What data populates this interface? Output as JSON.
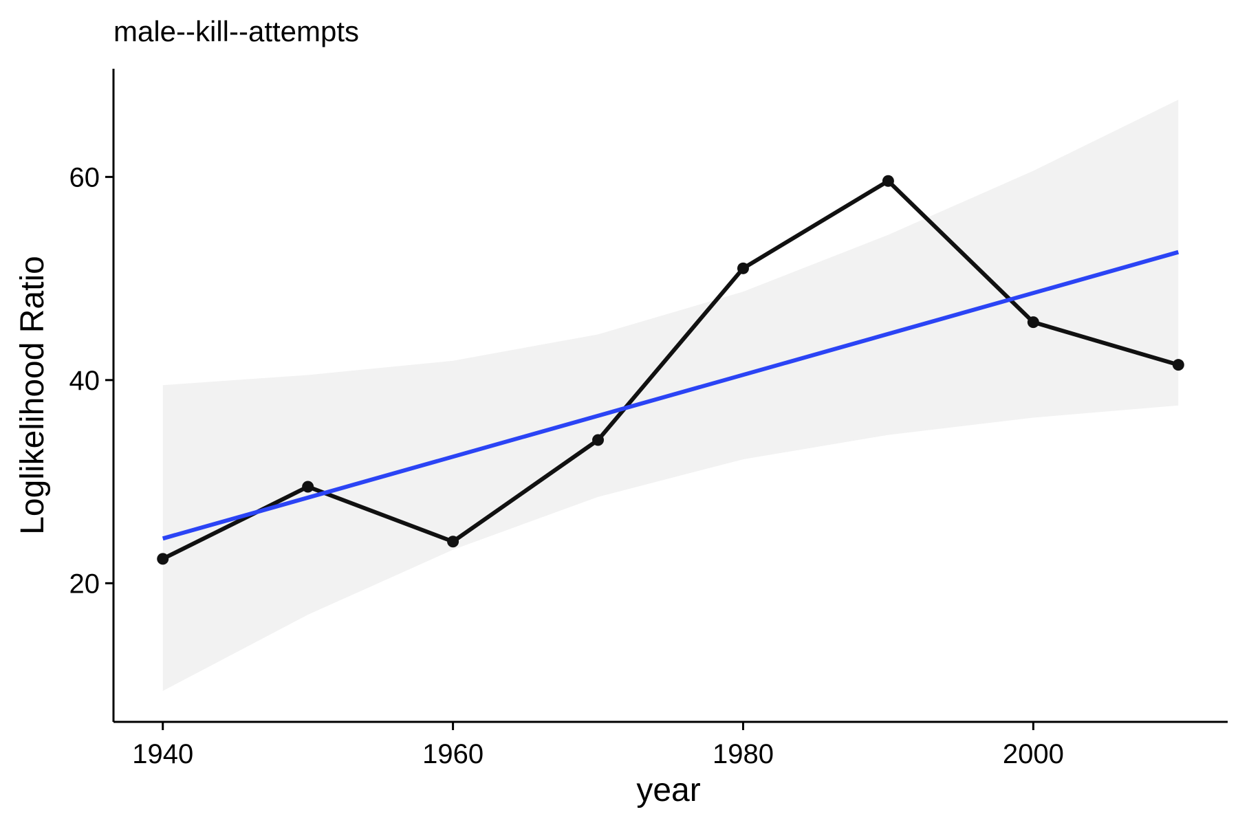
{
  "chart_data": {
    "type": "line",
    "title": "male--kill--attempts",
    "xlabel": "year",
    "ylabel": "Loglikelihood Ratio",
    "xlim": [
      1936.6,
      2013.4
    ],
    "ylim": [
      6.35,
      70.65
    ],
    "x_ticks": [
      1940,
      1960,
      1980,
      2000
    ],
    "y_ticks": [
      20,
      40,
      60
    ],
    "grid": false,
    "legend": "none",
    "series": [
      {
        "x": [
          1940,
          1950,
          1960,
          1970,
          1980,
          1990,
          2000,
          2010
        ],
        "y": [
          22.4,
          29.5,
          24.1,
          34.1,
          51.0,
          59.6,
          45.7,
          41.5
        ],
        "color": "#111111"
      }
    ],
    "trend_line": {
      "x": [
        1940,
        2010
      ],
      "y": [
        24.4,
        52.6
      ],
      "color": "#2B44F5"
    },
    "confidence_band": {
      "x": [
        1940,
        1950,
        1960,
        1970,
        1980,
        1990,
        2000,
        2010
      ],
      "lower": [
        9.4,
        16.9,
        23.3,
        28.5,
        32.2,
        34.6,
        36.3,
        37.5
      ],
      "upper": [
        39.5,
        40.5,
        41.9,
        44.5,
        48.7,
        54.3,
        60.6,
        67.6
      ],
      "color": "#F2F2F2"
    }
  }
}
